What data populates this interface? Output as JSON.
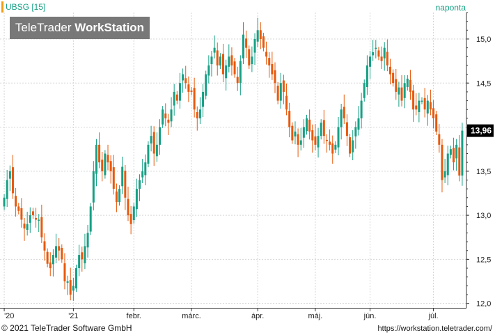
{
  "header": {
    "symbol": "UBSG [15]",
    "interval": "naponta"
  },
  "logo": {
    "part1": "TeleTrader ",
    "part2": "WorkStation"
  },
  "footer": {
    "copyright": "© 2021 TeleTrader Software GmbH",
    "url": "https://workstation.teletrader.com/"
  },
  "current_price_label": "13,96",
  "colors": {
    "up": "#16a085",
    "down": "#e8590c",
    "grid": "#d5d5d5",
    "accent": "#16a085"
  },
  "chart_data": {
    "type": "candlestick",
    "title": "",
    "series_name": "UBSG",
    "ylim": [
      11.95,
      15.3
    ],
    "yticks": [
      12.0,
      12.5,
      13.0,
      13.5,
      14.0,
      14.5,
      15.0
    ],
    "ytick_labels": [
      "12,0",
      "12,5",
      "13,0",
      "13,5",
      "14,0",
      "14,5",
      "15,0"
    ],
    "xtick_labels": [
      {
        "label": "'20",
        "bar": 0
      },
      {
        "label": "'21",
        "bar": 24
      },
      {
        "label": "febr.",
        "bar": 45
      },
      {
        "label": "márc.",
        "bar": 65
      },
      {
        "label": "ápr.",
        "bar": 88
      },
      {
        "label": "máj.",
        "bar": 108
      },
      {
        "label": "jún.",
        "bar": 127
      },
      {
        "label": "júl.",
        "bar": 149
      }
    ],
    "current": 13.96,
    "closes": [
      13.2,
      13.4,
      13.5,
      13.25,
      13.1,
      13.05,
      12.95,
      12.85,
      12.9,
      13.0,
      13.0,
      12.95,
      12.95,
      12.75,
      12.6,
      12.45,
      12.4,
      12.55,
      12.65,
      12.6,
      12.5,
      12.25,
      12.25,
      12.1,
      12.2,
      12.4,
      12.55,
      12.5,
      12.65,
      12.8,
      13.1,
      13.5,
      13.8,
      13.6,
      13.5,
      13.7,
      13.6,
      13.5,
      13.3,
      13.15,
      13.3,
      13.55,
      13.2,
      13.0,
      12.9,
      13.1,
      13.3,
      13.4,
      13.5,
      13.6,
      13.8,
      13.9,
      13.7,
      13.8,
      14.0,
      14.2,
      14.1,
      14.05,
      14.2,
      14.4,
      14.3,
      14.5,
      14.6,
      14.5,
      14.4,
      14.4,
      14.2,
      14.1,
      14.2,
      14.4,
      14.6,
      14.7,
      14.8,
      14.9,
      14.7,
      14.8,
      14.6,
      14.7,
      14.8,
      14.7,
      14.6,
      14.5,
      14.75,
      15.05,
      14.9,
      14.7,
      14.8,
      15.0,
      15.1,
      15.0,
      14.9,
      14.8,
      14.7,
      14.6,
      14.5,
      14.3,
      14.5,
      14.4,
      14.2,
      14.0,
      13.85,
      13.95,
      13.8,
      13.85,
      14.0,
      14.1,
      13.95,
      13.85,
      13.8,
      13.9,
      14.05,
      13.9,
      13.85,
      13.8,
      13.7,
      13.8,
      14.0,
      14.2,
      14.1,
      13.9,
      13.7,
      13.85,
      14.0,
      14.1,
      14.3,
      14.5,
      14.7,
      14.8,
      14.85,
      14.9,
      14.8,
      14.75,
      14.9,
      14.7,
      14.6,
      14.5,
      14.4,
      14.45,
      14.3,
      14.5,
      14.55,
      14.4,
      14.2,
      14.2,
      14.3,
      14.3,
      14.2,
      14.3,
      14.2,
      14.1,
      13.95,
      13.8,
      13.4,
      13.5,
      13.7,
      13.75,
      13.6,
      13.8,
      13.45,
      13.96
    ],
    "x_dates": [
      "'20",
      "'21",
      "febr.",
      "márc.",
      "ápr.",
      "máj.",
      "jún.",
      "júl."
    ]
  }
}
